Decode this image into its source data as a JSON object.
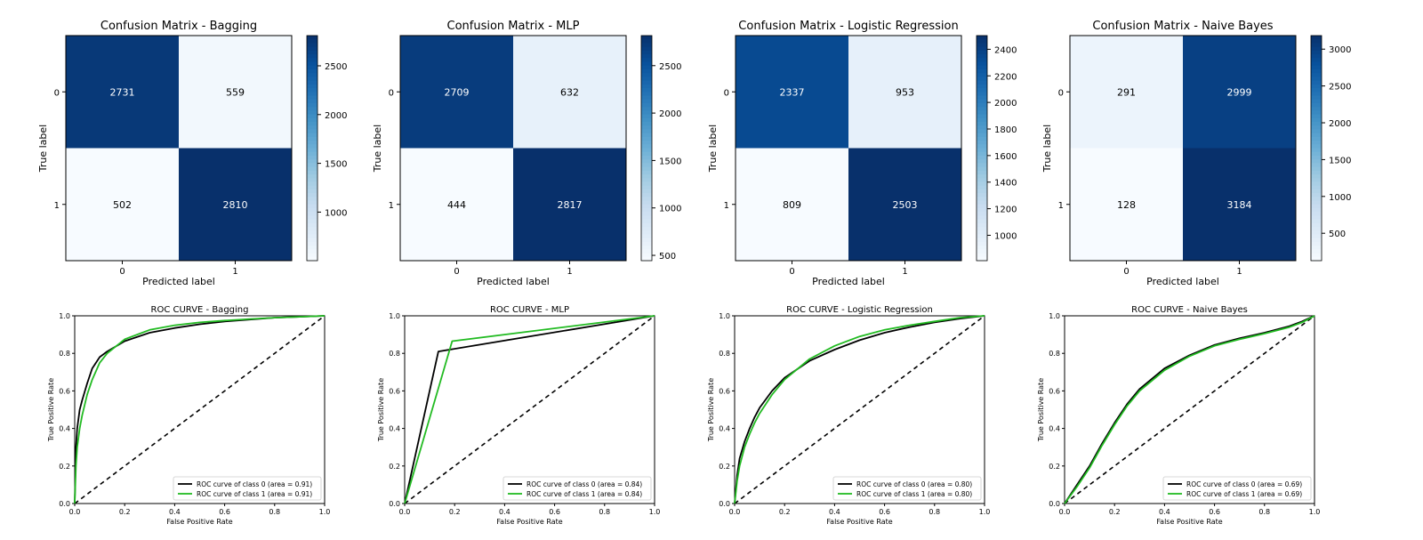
{
  "chart_data": [
    {
      "type": "heatmap",
      "title": "Confusion Matrix - Bagging",
      "xlabel": "Predicted label",
      "ylabel": "True label",
      "x_categories": [
        "0",
        "1"
      ],
      "y_categories": [
        "0",
        "1"
      ],
      "values": [
        [
          2731,
          559
        ],
        [
          502,
          2810
        ]
      ],
      "colormap": "Blues",
      "colorbar_ticks": [
        1000,
        1500,
        2000,
        2500
      ]
    },
    {
      "type": "heatmap",
      "title": "Confusion Matrix - MLP",
      "xlabel": "Predicted label",
      "ylabel": "True label",
      "x_categories": [
        "0",
        "1"
      ],
      "y_categories": [
        "0",
        "1"
      ],
      "values": [
        [
          2709,
          632
        ],
        [
          444,
          2817
        ]
      ],
      "colormap": "Blues",
      "colorbar_ticks": [
        500,
        1000,
        1500,
        2000,
        2500
      ]
    },
    {
      "type": "heatmap",
      "title": "Confusion Matrix - Logistic Regression",
      "xlabel": "Predicted label",
      "ylabel": "True label",
      "x_categories": [
        "0",
        "1"
      ],
      "y_categories": [
        "0",
        "1"
      ],
      "values": [
        [
          2337,
          953
        ],
        [
          809,
          2503
        ]
      ],
      "colormap": "Blues",
      "colorbar_ticks": [
        1000,
        1200,
        1400,
        1600,
        1800,
        2000,
        2200,
        2400
      ]
    },
    {
      "type": "heatmap",
      "title": "Confusion Matrix - Naive Bayes",
      "xlabel": "Predicted label",
      "ylabel": "True label",
      "x_categories": [
        "0",
        "1"
      ],
      "y_categories": [
        "0",
        "1"
      ],
      "values": [
        [
          291,
          2999
        ],
        [
          128,
          3184
        ]
      ],
      "colormap": "Blues",
      "colorbar_ticks": [
        500,
        1000,
        1500,
        2000,
        2500,
        3000
      ]
    },
    {
      "type": "line",
      "title": "ROC CURVE - Bagging",
      "xlabel": "False Positive Rate",
      "ylabel": "True Positive Rate",
      "xlim": [
        0,
        1
      ],
      "ylim": [
        0,
        1
      ],
      "ticks": [
        "0.0",
        "0.2",
        "0.4",
        "0.6",
        "0.8",
        "1.0"
      ],
      "legend_position": "lower-right",
      "diagonal": [
        [
          0,
          0
        ],
        [
          1,
          1
        ]
      ],
      "series": [
        {
          "name": "ROC curve of class 0 (area = 0.91)",
          "color": "#000000",
          "x": [
            0,
            0.005,
            0.01,
            0.02,
            0.03,
            0.05,
            0.07,
            0.1,
            0.13,
            0.2,
            0.3,
            0.4,
            0.5,
            0.6,
            0.7,
            0.8,
            0.9,
            1.0
          ],
          "y": [
            0,
            0.3,
            0.4,
            0.5,
            0.55,
            0.64,
            0.72,
            0.78,
            0.81,
            0.865,
            0.91,
            0.935,
            0.955,
            0.97,
            0.98,
            0.99,
            0.995,
            1.0
          ]
        },
        {
          "name": "ROC curve of class 1 (area = 0.91)",
          "color": "#22bb22",
          "x": [
            0,
            0.005,
            0.01,
            0.02,
            0.03,
            0.05,
            0.07,
            0.1,
            0.13,
            0.2,
            0.3,
            0.4,
            0.5,
            0.6,
            0.7,
            0.8,
            0.9,
            1.0
          ],
          "y": [
            0,
            0.2,
            0.3,
            0.4,
            0.47,
            0.58,
            0.66,
            0.75,
            0.8,
            0.875,
            0.925,
            0.95,
            0.965,
            0.975,
            0.983,
            0.99,
            0.995,
            1.0
          ]
        }
      ]
    },
    {
      "type": "line",
      "title": "ROC CURVE - MLP",
      "xlabel": "False Positive Rate",
      "ylabel": "True Positive Rate",
      "xlim": [
        0,
        1
      ],
      "ylim": [
        0,
        1
      ],
      "ticks": [
        "0.0",
        "0.2",
        "0.4",
        "0.6",
        "0.8",
        "1.0"
      ],
      "legend_position": "lower-right",
      "diagonal": [
        [
          0,
          0
        ],
        [
          1,
          1
        ]
      ],
      "series": [
        {
          "name": "ROC curve of class 0 (area = 0.84)",
          "color": "#000000",
          "x": [
            0,
            0.135,
            1.0
          ],
          "y": [
            0,
            0.81,
            1.0
          ]
        },
        {
          "name": "ROC curve of class 1 (area = 0.84)",
          "color": "#22bb22",
          "x": [
            0,
            0.19,
            1.0
          ],
          "y": [
            0,
            0.865,
            1.0
          ]
        }
      ]
    },
    {
      "type": "line",
      "title": "ROC CURVE - Logistic Regression",
      "xlabel": "False Positive Rate",
      "ylabel": "True Positive Rate",
      "xlim": [
        0,
        1
      ],
      "ylim": [
        0,
        1
      ],
      "ticks": [
        "0.0",
        "0.2",
        "0.4",
        "0.6",
        "0.8",
        "1.0"
      ],
      "legend_position": "lower-right",
      "diagonal": [
        [
          0,
          0
        ],
        [
          1,
          1
        ]
      ],
      "series": [
        {
          "name": "ROC curve of class 0 (area = 0.80)",
          "color": "#000000",
          "x": [
            0,
            0.01,
            0.02,
            0.04,
            0.06,
            0.08,
            0.1,
            0.15,
            0.2,
            0.3,
            0.4,
            0.5,
            0.6,
            0.7,
            0.8,
            0.9,
            1.0
          ],
          "y": [
            0,
            0.15,
            0.24,
            0.33,
            0.4,
            0.46,
            0.51,
            0.6,
            0.67,
            0.76,
            0.82,
            0.87,
            0.91,
            0.94,
            0.965,
            0.985,
            1.0
          ]
        },
        {
          "name": "ROC curve of class 1 (area = 0.80)",
          "color": "#22bb22",
          "x": [
            0,
            0.01,
            0.02,
            0.04,
            0.06,
            0.08,
            0.1,
            0.15,
            0.2,
            0.3,
            0.4,
            0.5,
            0.6,
            0.7,
            0.8,
            0.9,
            1.0
          ],
          "y": [
            0,
            0.12,
            0.2,
            0.3,
            0.37,
            0.43,
            0.48,
            0.58,
            0.66,
            0.77,
            0.84,
            0.89,
            0.925,
            0.95,
            0.97,
            0.99,
            1.0
          ]
        }
      ]
    },
    {
      "type": "line",
      "title": "ROC CURVE - Naive Bayes",
      "xlabel": "False Positive Rate",
      "ylabel": "True Positive Rate",
      "xlim": [
        0,
        1
      ],
      "ylim": [
        0,
        1
      ],
      "ticks": [
        "0.0",
        "0.2",
        "0.4",
        "0.6",
        "0.8",
        "1.0"
      ],
      "legend_position": "lower-right",
      "diagonal": [
        [
          0,
          0
        ],
        [
          1,
          1
        ]
      ],
      "series": [
        {
          "name": "ROC curve of class 0 (area = 0.69)",
          "color": "#000000",
          "x": [
            0,
            0.05,
            0.1,
            0.15,
            0.2,
            0.25,
            0.3,
            0.4,
            0.5,
            0.6,
            0.7,
            0.8,
            0.9,
            0.95,
            1.0
          ],
          "y": [
            0,
            0.1,
            0.2,
            0.32,
            0.43,
            0.53,
            0.61,
            0.72,
            0.79,
            0.845,
            0.88,
            0.91,
            0.945,
            0.97,
            1.0
          ]
        },
        {
          "name": "ROC curve of class 1 (area = 0.69)",
          "color": "#22bb22",
          "x": [
            0,
            0.05,
            0.1,
            0.15,
            0.2,
            0.25,
            0.3,
            0.4,
            0.5,
            0.6,
            0.7,
            0.8,
            0.9,
            0.95,
            1.0
          ],
          "y": [
            0,
            0.09,
            0.19,
            0.31,
            0.42,
            0.52,
            0.6,
            0.71,
            0.785,
            0.84,
            0.875,
            0.905,
            0.94,
            0.965,
            1.0
          ]
        }
      ]
    }
  ]
}
